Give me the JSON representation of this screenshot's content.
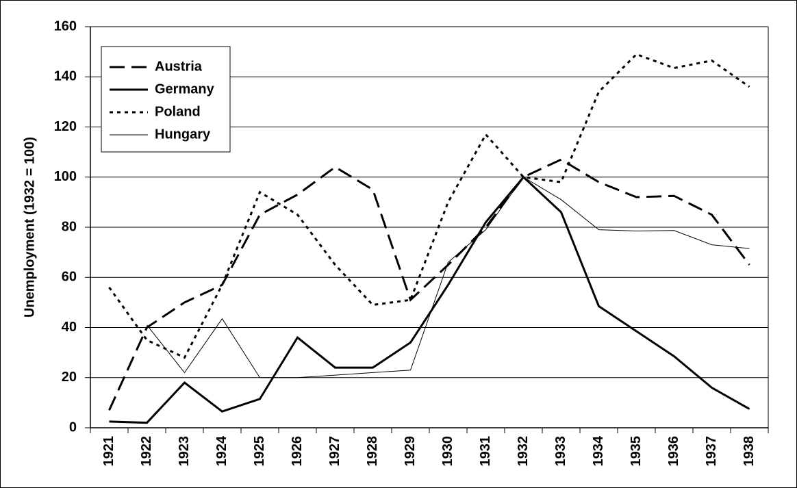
{
  "chart_data": {
    "type": "line",
    "y_label": "Unemployment (1932 = 100)",
    "categories": [
      "1921",
      "1922",
      "1923",
      "1924",
      "1925",
      "1926",
      "1927",
      "1928",
      "1929",
      "1930",
      "1931",
      "1932",
      "1933",
      "1934",
      "1935",
      "1936",
      "1937",
      "1938"
    ],
    "series": [
      {
        "name": "Austria",
        "color": "#000000",
        "dash": "dashed",
        "width": 3,
        "values": [
          7,
          40,
          50,
          57,
          85,
          93,
          104,
          95,
          51,
          65,
          80,
          100,
          107,
          98,
          92,
          92.5,
          85,
          65
        ]
      },
      {
        "name": "Germany",
        "color": "#000000",
        "dash": "solid",
        "width": 3,
        "values": [
          2.5,
          2,
          18,
          6.5,
          11.5,
          36,
          24,
          24,
          34,
          57,
          82,
          100,
          86,
          48.5,
          38.5,
          28.5,
          16,
          7.5
        ]
      },
      {
        "name": "Poland",
        "color": "#000000",
        "dash": "dotted",
        "width": 3,
        "values": [
          56,
          35,
          28,
          57,
          94,
          85,
          65,
          49,
          51,
          90,
          117,
          100,
          98,
          134,
          149,
          143.5,
          146.5,
          136
        ]
      },
      {
        "name": "Hungary",
        "color": "#000000",
        "dash": "solid",
        "width": 1,
        "values": [
          null,
          41,
          22,
          43.5,
          20,
          20,
          21,
          22,
          23,
          66,
          79,
          100,
          91,
          79,
          78.5,
          78.7,
          73,
          71.5
        ]
      }
    ],
    "ylim": [
      0,
      160
    ],
    "yticks": [
      0,
      20,
      40,
      60,
      80,
      100,
      120,
      140,
      160
    ],
    "grid": true,
    "legend": "top-left"
  }
}
